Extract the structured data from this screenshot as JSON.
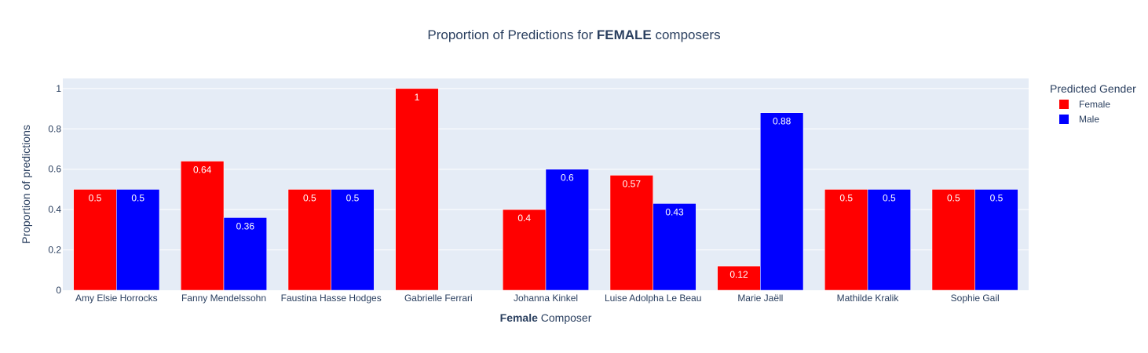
{
  "chart_data": {
    "type": "bar",
    "title": {
      "prefix": "Proportion of Predictions for ",
      "bold": "FEMALE",
      "suffix": " composers"
    },
    "xlabel": {
      "bold": "Female",
      "rest": " Composer"
    },
    "ylabel": "Proportion of predictions",
    "ylim": [
      0,
      1.05
    ],
    "yticks": [
      0,
      0.2,
      0.4,
      0.6,
      0.8,
      1
    ],
    "ytick_labels": [
      "0",
      "0.2",
      "0.4",
      "0.6",
      "0.8",
      "1"
    ],
    "grid": true,
    "legend": {
      "title": "Predicted Gender",
      "placement": "right"
    },
    "categories": [
      "Amy Elsie Horrocks",
      "Fanny Mendelssohn",
      "Faustina Hasse Hodges",
      "Gabrielle Ferrari",
      "Johanna Kinkel",
      "Luise Adolpha Le Beau",
      "Marie Jaëll",
      "Mathilde Kralik",
      "Sophie Gail"
    ],
    "series": [
      {
        "name": "Female",
        "color": "#ff0000",
        "values": [
          0.5,
          0.64,
          0.5,
          1,
          0.4,
          0.57,
          0.12,
          0.5,
          0.5
        ],
        "labels": [
          "0.5",
          "0.64",
          "0.5",
          "1",
          "0.4",
          "0.57",
          "0.12",
          "0.5",
          "0.5"
        ]
      },
      {
        "name": "Male",
        "color": "#0000ff",
        "values": [
          0.5,
          0.36,
          0.5,
          null,
          0.6,
          0.43,
          0.88,
          0.5,
          0.5
        ],
        "labels": [
          "0.5",
          "0.36",
          "0.5",
          null,
          "0.6",
          "0.43",
          "0.88",
          "0.5",
          "0.5"
        ]
      }
    ],
    "colors": {
      "plot_bg": "#e5ecf6",
      "text": "#2a3f5f"
    }
  }
}
